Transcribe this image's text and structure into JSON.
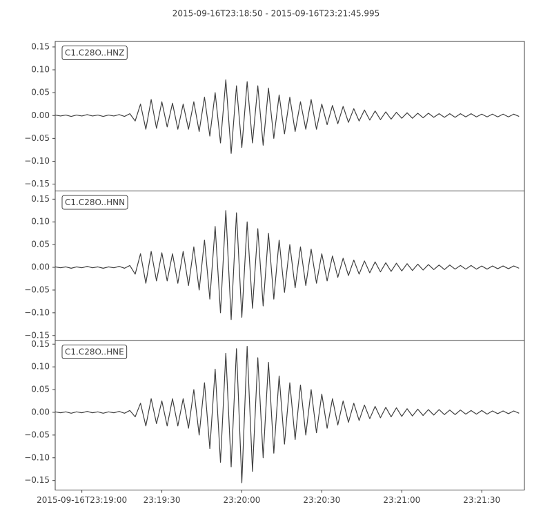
{
  "title": "2015-09-16T23:18:50  -  2015-09-16T23:21:45.995",
  "chart_data": [
    {
      "type": "line",
      "label": "C1.C28O..HNZ",
      "color": "#3f3f3f",
      "xlim": [
        0,
        175.995
      ],
      "ylim": [
        -0.165,
        0.162
      ],
      "yticks": [
        {
          "value": -0.15,
          "label": "−0.15"
        },
        {
          "value": -0.1,
          "label": "−0.10"
        },
        {
          "value": -0.05,
          "label": "−0.05"
        },
        {
          "value": 0,
          "label": "0.00"
        },
        {
          "value": 0.05,
          "label": "0.05"
        },
        {
          "value": 0.1,
          "label": "0.10"
        },
        {
          "value": 0.15,
          "label": "0.15"
        }
      ],
      "x": [
        0,
        2,
        4,
        6,
        8,
        10,
        12,
        14,
        16,
        18,
        20,
        22,
        24,
        26,
        28,
        30,
        32,
        34,
        36,
        38,
        40,
        42,
        44,
        46,
        48,
        50,
        52,
        54,
        56,
        58,
        60,
        62,
        64,
        66,
        68,
        70,
        72,
        74,
        76,
        78,
        80,
        82,
        84,
        86,
        88,
        90,
        92,
        94,
        96,
        98,
        100,
        102,
        104,
        106,
        108,
        110,
        112,
        114,
        116,
        118,
        120,
        122,
        124,
        126,
        128,
        130,
        132,
        134,
        136,
        138,
        140,
        142,
        144,
        146,
        148,
        150,
        152,
        154,
        156,
        158,
        160,
        162,
        164,
        166,
        168,
        170,
        172,
        174
      ],
      "series": [
        {
          "values": [
            0.001,
            -0.001,
            0.001,
            -0.002,
            0.001,
            -0.001,
            0.002,
            -0.001,
            0.001,
            -0.002,
            0.001,
            -0.001,
            0.002,
            -0.002,
            0.004,
            -0.012,
            0.025,
            -0.03,
            0.035,
            -0.028,
            0.03,
            -0.025,
            0.027,
            -0.03,
            0.025,
            -0.03,
            0.03,
            -0.035,
            0.04,
            -0.045,
            0.05,
            -0.06,
            0.078,
            -0.083,
            0.065,
            -0.07,
            0.074,
            -0.06,
            0.065,
            -0.065,
            0.06,
            -0.05,
            0.045,
            -0.04,
            0.04,
            -0.035,
            0.03,
            -0.03,
            0.035,
            -0.03,
            0.025,
            -0.02,
            0.022,
            -0.018,
            0.02,
            -0.015,
            0.015,
            -0.012,
            0.012,
            -0.01,
            0.01,
            -0.009,
            0.008,
            -0.008,
            0.007,
            -0.006,
            0.006,
            -0.006,
            0.005,
            -0.005,
            0.005,
            -0.004,
            0.004,
            -0.004,
            0.004,
            -0.004,
            0.004,
            -0.003,
            0.004,
            -0.003,
            0.003,
            -0.003,
            0.003,
            -0.003,
            0.003,
            -0.003,
            0.003,
            -0.002
          ]
        }
      ]
    },
    {
      "type": "line",
      "label": "C1.C28O..HNN",
      "color": "#3f3f3f",
      "xlim": [
        0,
        175.995
      ],
      "ylim": [
        -0.161,
        0.168
      ],
      "yticks": [
        {
          "value": -0.15,
          "label": "−0.15"
        },
        {
          "value": -0.1,
          "label": "−0.10"
        },
        {
          "value": -0.05,
          "label": "−0.05"
        },
        {
          "value": 0,
          "label": "0.00"
        },
        {
          "value": 0.05,
          "label": "0.05"
        },
        {
          "value": 0.1,
          "label": "0.10"
        },
        {
          "value": 0.15,
          "label": "0.15"
        }
      ],
      "x": [
        0,
        2,
        4,
        6,
        8,
        10,
        12,
        14,
        16,
        18,
        20,
        22,
        24,
        26,
        28,
        30,
        32,
        34,
        36,
        38,
        40,
        42,
        44,
        46,
        48,
        50,
        52,
        54,
        56,
        58,
        60,
        62,
        64,
        66,
        68,
        70,
        72,
        74,
        76,
        78,
        80,
        82,
        84,
        86,
        88,
        90,
        92,
        94,
        96,
        98,
        100,
        102,
        104,
        106,
        108,
        110,
        112,
        114,
        116,
        118,
        120,
        122,
        124,
        126,
        128,
        130,
        132,
        134,
        136,
        138,
        140,
        142,
        144,
        146,
        148,
        150,
        152,
        154,
        156,
        158,
        160,
        162,
        164,
        166,
        168,
        170,
        172,
        174
      ],
      "series": [
        {
          "values": [
            0.001,
            -0.001,
            0.001,
            -0.002,
            0.001,
            -0.001,
            0.002,
            -0.001,
            0.001,
            -0.002,
            0.001,
            -0.001,
            0.002,
            -0.002,
            0.004,
            -0.015,
            0.03,
            -0.035,
            0.035,
            -0.03,
            0.032,
            -0.03,
            0.03,
            -0.035,
            0.035,
            -0.04,
            0.045,
            -0.05,
            0.06,
            -0.07,
            0.09,
            -0.1,
            0.125,
            -0.115,
            0.12,
            -0.11,
            0.1,
            -0.09,
            0.085,
            -0.085,
            0.075,
            -0.07,
            0.06,
            -0.055,
            0.05,
            -0.045,
            0.045,
            -0.04,
            0.04,
            -0.035,
            0.03,
            -0.03,
            0.025,
            -0.022,
            0.02,
            -0.018,
            0.016,
            -0.015,
            0.014,
            -0.012,
            0.012,
            -0.01,
            0.01,
            -0.009,
            0.009,
            -0.008,
            0.008,
            -0.007,
            0.007,
            -0.006,
            0.006,
            -0.005,
            0.005,
            -0.005,
            0.005,
            -0.004,
            0.004,
            -0.004,
            0.004,
            -0.004,
            0.003,
            -0.004,
            0.003,
            -0.003,
            0.003,
            -0.003,
            0.003,
            -0.002
          ]
        }
      ]
    },
    {
      "type": "line",
      "label": "C1.C28O..HNE",
      "color": "#3f3f3f",
      "xlim": [
        0,
        175.995
      ],
      "ylim": [
        -0.171,
        0.158
      ],
      "yticks": [
        {
          "value": -0.15,
          "label": "−0.15"
        },
        {
          "value": -0.1,
          "label": "−0.10"
        },
        {
          "value": -0.05,
          "label": "−0.05"
        },
        {
          "value": 0,
          "label": "0.00"
        },
        {
          "value": 0.05,
          "label": "0.05"
        },
        {
          "value": 0.1,
          "label": "0.10"
        },
        {
          "value": 0.15,
          "label": "0.15"
        }
      ],
      "xticks": [
        {
          "value": 10,
          "label": "2015-09-16T23:19:00"
        },
        {
          "value": 40,
          "label": "23:19:30"
        },
        {
          "value": 70,
          "label": "23:20:00"
        },
        {
          "value": 100,
          "label": "23:20:30"
        },
        {
          "value": 130,
          "label": "23:21:00"
        },
        {
          "value": 160,
          "label": "23:21:30"
        }
      ],
      "x": [
        0,
        2,
        4,
        6,
        8,
        10,
        12,
        14,
        16,
        18,
        20,
        22,
        24,
        26,
        28,
        30,
        32,
        34,
        36,
        38,
        40,
        42,
        44,
        46,
        48,
        50,
        52,
        54,
        56,
        58,
        60,
        62,
        64,
        66,
        68,
        70,
        72,
        74,
        76,
        78,
        80,
        82,
        84,
        86,
        88,
        90,
        92,
        94,
        96,
        98,
        100,
        102,
        104,
        106,
        108,
        110,
        112,
        114,
        116,
        118,
        120,
        122,
        124,
        126,
        128,
        130,
        132,
        134,
        136,
        138,
        140,
        142,
        144,
        146,
        148,
        150,
        152,
        154,
        156,
        158,
        160,
        162,
        164,
        166,
        168,
        170,
        172,
        174
      ],
      "series": [
        {
          "values": [
            0.001,
            -0.001,
            0.001,
            -0.002,
            0.001,
            -0.001,
            0.002,
            -0.001,
            0.001,
            -0.002,
            0.001,
            -0.001,
            0.002,
            -0.002,
            0.004,
            -0.01,
            0.02,
            -0.03,
            0.03,
            -0.025,
            0.025,
            -0.03,
            0.03,
            -0.03,
            0.03,
            -0.035,
            0.05,
            -0.05,
            0.065,
            -0.08,
            0.095,
            -0.11,
            0.13,
            -0.12,
            0.14,
            -0.155,
            0.145,
            -0.13,
            0.12,
            -0.1,
            0.11,
            -0.09,
            0.08,
            -0.07,
            0.065,
            -0.06,
            0.06,
            -0.05,
            0.05,
            -0.045,
            0.04,
            -0.035,
            0.03,
            -0.028,
            0.025,
            -0.022,
            0.02,
            -0.018,
            0.016,
            -0.014,
            0.013,
            -0.012,
            0.011,
            -0.01,
            0.01,
            -0.009,
            0.008,
            -0.008,
            0.007,
            -0.007,
            0.006,
            -0.006,
            0.006,
            -0.005,
            0.005,
            -0.005,
            0.005,
            -0.004,
            0.004,
            -0.004,
            0.004,
            -0.004,
            0.003,
            -0.003,
            0.003,
            -0.003,
            0.003,
            -0.002
          ]
        }
      ]
    }
  ]
}
